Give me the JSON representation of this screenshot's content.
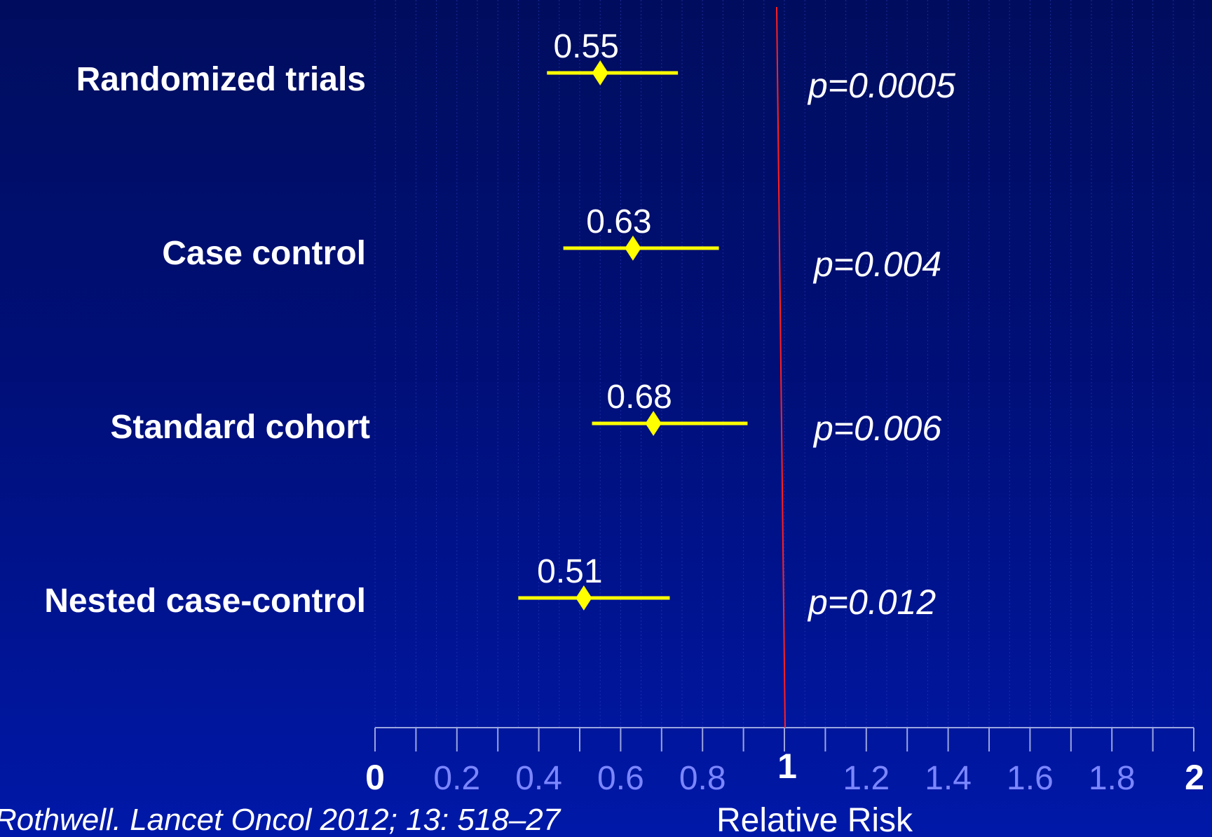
{
  "chart_data": {
    "type": "scatter",
    "subtype": "forest-plot",
    "xlabel": "Relative Risk",
    "xlim": [
      0,
      2
    ],
    "x_ticks": [
      "0",
      "0.2",
      "0.4",
      "0.6",
      "0.8",
      "1",
      "1.2",
      "1.4",
      "1.6",
      "1.8",
      "2"
    ],
    "reference_line": 1,
    "grid": true,
    "rows": [
      {
        "label": "Randomized trials",
        "estimate": 0.55,
        "estimate_label": "0.55",
        "ci": [
          0.42,
          0.74
        ],
        "p_value": "p=0.0005"
      },
      {
        "label": "Case control",
        "estimate": 0.63,
        "estimate_label": "0.63",
        "ci": [
          0.46,
          0.84
        ],
        "p_value": "p=0.004"
      },
      {
        "label": "Standard cohort",
        "estimate": 0.68,
        "estimate_label": "0.68",
        "ci": [
          0.53,
          0.91
        ],
        "p_value": "p=0.006"
      },
      {
        "label": "Nested case-control",
        "estimate": 0.51,
        "estimate_label": "0.51",
        "ci": [
          0.35,
          0.72
        ],
        "p_value": "p=0.012"
      }
    ],
    "colors": {
      "marker": "#ffff00",
      "reference_line": "#ff2020",
      "axis": "#9aa6e0",
      "tick_label": "#7b86ff",
      "emphasis_tick_label": "#ffffff"
    }
  },
  "citation": "Rothwell. Lancet Oncol 2012; 13: 518–27"
}
